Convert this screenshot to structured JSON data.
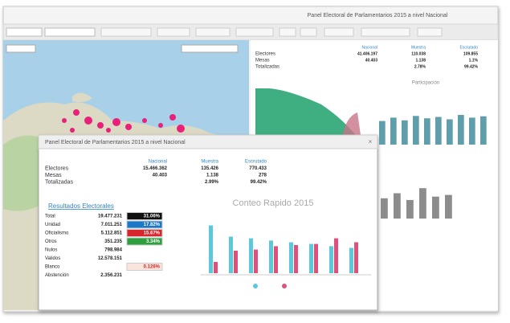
{
  "window": {
    "title": "Panel Electoral de Parlamentarios 2015 a nivel Nacional"
  },
  "summary": {
    "headers": [
      "Nacional",
      "Muestra",
      "Escrutado"
    ],
    "rows": [
      {
        "label": "Electores",
        "cells": [
          "41.406.197",
          "110.038",
          "109.855"
        ]
      },
      {
        "label": "Mesas",
        "cells": [
          "40.403",
          "1.138",
          "1.1%"
        ]
      },
      {
        "label": "Totalizadas",
        "cells": [
          "2.78%",
          "99.42%"
        ]
      }
    ]
  },
  "participation": {
    "title": "Participación"
  },
  "bg_chart": {
    "color": "#5f9eaa",
    "values": [
      70,
      80,
      72,
      85,
      78,
      82,
      75,
      88,
      80,
      84
    ]
  },
  "bg_chart2": {
    "color": "#8c8c8c",
    "values": [
      60,
      75,
      55,
      90,
      65,
      70
    ]
  },
  "modal": {
    "title": "Panel Electoral de Parlamentarios 2015 a nivel Nacional",
    "summary": {
      "headers": [
        "Nacional",
        "Muestra",
        "Escrutado"
      ],
      "rows": [
        {
          "label": "Electores",
          "cells": [
            "15.466.362",
            "135.426",
            "770.433"
          ]
        },
        {
          "label": "Mesas",
          "cells": [
            "40.403",
            "1.138",
            "278"
          ]
        },
        {
          "label": "Totalizadas",
          "cells": [
            "2.99%",
            "99.42%"
          ]
        }
      ]
    },
    "results": {
      "title": "Resultados Electorales",
      "rows": [
        {
          "label": "Total",
          "value": "19.477.231",
          "pct": "31.06%",
          "color": "#111111"
        },
        {
          "label": "Unidad",
          "value": "7.011.251",
          "pct": "17.82%",
          "color": "#1e78c8"
        },
        {
          "label": "Oficialismo",
          "value": "5.112.851",
          "pct": "15.67%",
          "color": "#d8262c"
        },
        {
          "label": "Otros",
          "value": "351.235",
          "pct": "3.34%",
          "color": "#2e9e3e"
        },
        {
          "label": "Nulos",
          "value": "798.984"
        },
        {
          "label": "Validos",
          "value": "12.578.151"
        },
        {
          "label": "Blanco",
          "pct": "0.126%",
          "color": "#fbe4dc"
        },
        {
          "label": "Abstención",
          "value": "2.356.231"
        }
      ]
    },
    "chart": {
      "title": "Conteo Rapido 2015",
      "series": [
        {
          "color": "#5cc8dc",
          "values": [
            85,
            65,
            62,
            58,
            55,
            52,
            48,
            45
          ]
        },
        {
          "color": "#e0507a",
          "values": [
            20,
            40,
            42,
            48,
            50,
            52,
            62,
            55
          ]
        }
      ]
    }
  }
}
